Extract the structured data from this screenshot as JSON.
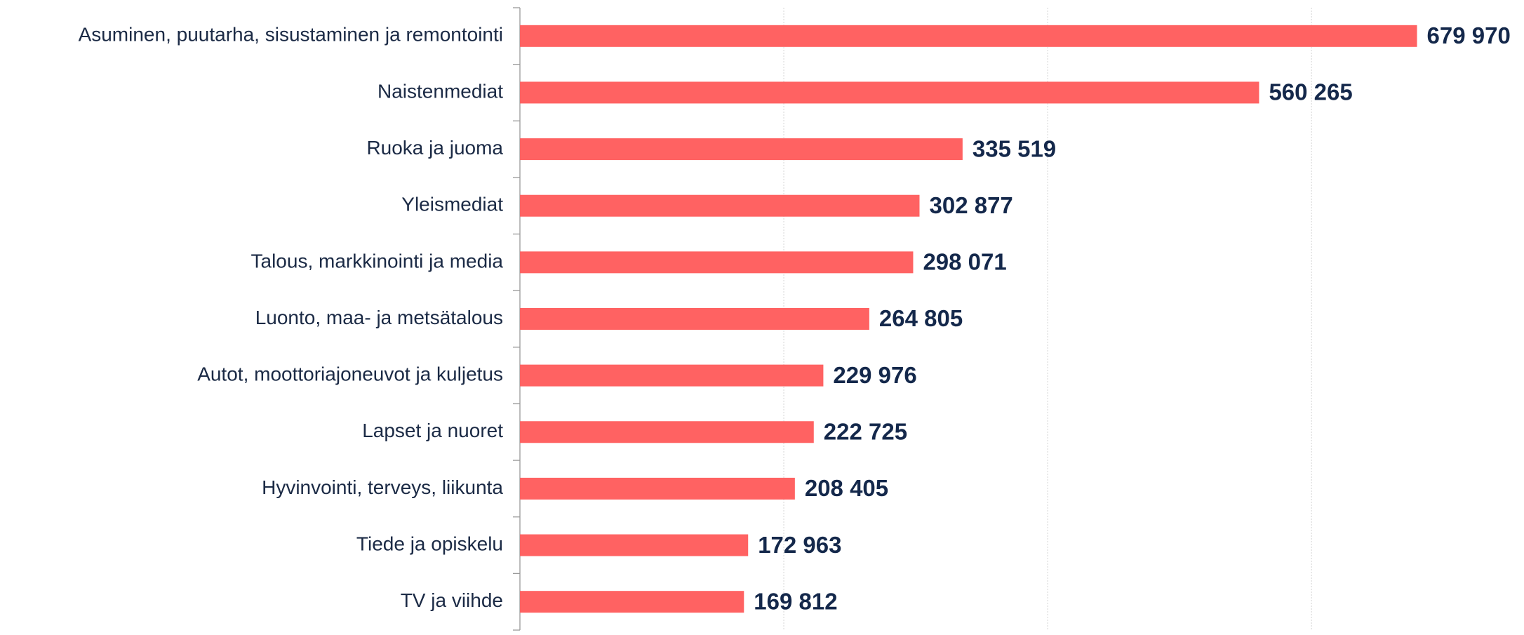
{
  "chart_data": {
    "type": "bar",
    "orientation": "horizontal",
    "categories": [
      "Asuminen, puutarha, sisustaminen ja remontointi",
      "Naistenmediat",
      "Ruoka ja juoma",
      "Yleismediat",
      "Talous, markkinointi ja media",
      "Luonto, maa- ja metsätalous",
      "Autot, moottoriajoneuvot ja kuljetus",
      "Lapset ja nuoret",
      "Hyvinvointi, terveys, liikunta",
      "Tiede ja opiskelu",
      "TV ja viihde"
    ],
    "values": [
      679970,
      560265,
      335519,
      302877,
      298071,
      264805,
      229976,
      222725,
      208405,
      172963,
      169812
    ],
    "value_labels": [
      "679 970",
      "560 265",
      "335 519",
      "302 877",
      "298 071",
      "264 805",
      "229 976",
      "222 725",
      "208 405",
      "172 963",
      "169 812"
    ],
    "color": "#ff6262",
    "xlim": [
      0,
      760000
    ],
    "xticks": [
      0,
      200000,
      400000,
      600000
    ],
    "grid": true
  }
}
